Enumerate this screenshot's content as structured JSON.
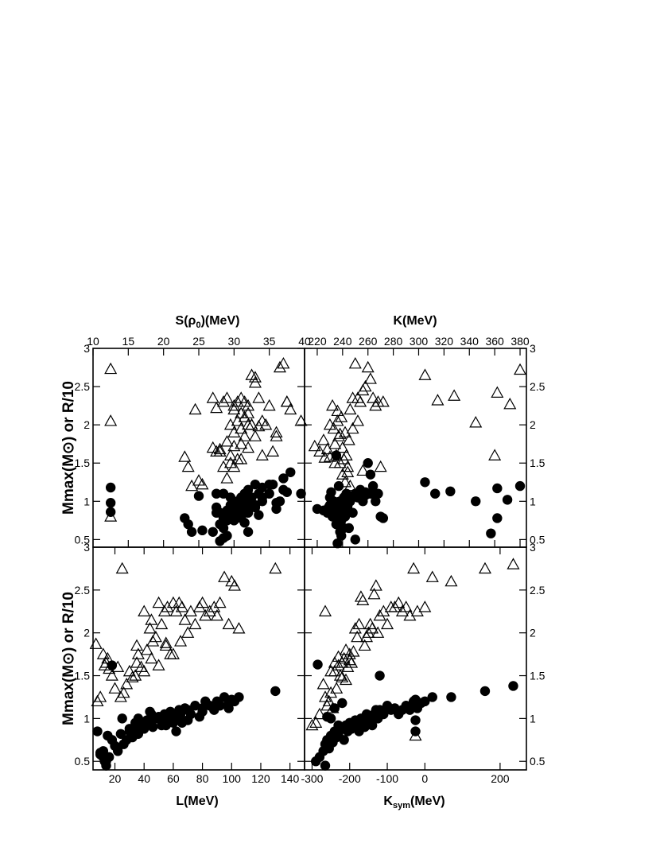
{
  "chart_data": [
    {
      "type": "scatter",
      "panel": "top-left",
      "xlabel": "S(ρ0)(MeV)",
      "xlabel_parts": {
        "main": "S(ρ",
        "sub": "0",
        "tail": ")(MeV)"
      },
      "xlabel_position": "top",
      "ylabel": "Mmax(M⊙) or R/10",
      "xlim": [
        10,
        40
      ],
      "ylim": [
        0.4,
        3.0
      ],
      "xticks": [
        10,
        15,
        20,
        25,
        30,
        35,
        40
      ],
      "yticks": [
        0.5,
        1,
        1.5,
        2,
        2.5,
        3
      ],
      "series": [
        {
          "marker": "circle-filled",
          "x": [
            12.5,
            12.5,
            12.5,
            23,
            23.5,
            24,
            25,
            25.5,
            27,
            27.5,
            27.5,
            27.5,
            28,
            28,
            28,
            28.5,
            28.5,
            28.5,
            29,
            29,
            29.5,
            29.5,
            29.5,
            30,
            30,
            30,
            30.5,
            30.5,
            31,
            31,
            31,
            31.5,
            31.5,
            31.5,
            32,
            32,
            32,
            32,
            32.5,
            32.5,
            33,
            33,
            33.5,
            33.5,
            34,
            34,
            34,
            35,
            35.5,
            36,
            36,
            37,
            37,
            37.5,
            38,
            39.5,
            28.5,
            28.5,
            29,
            30,
            31,
            33,
            35,
            36.5
          ],
          "y": [
            1.18,
            0.98,
            0.86,
            0.78,
            0.7,
            0.6,
            1.07,
            0.62,
            0.6,
            0.92,
            0.85,
            1.1,
            0.85,
            0.7,
            0.48,
            0.52,
            0.78,
            1.1,
            0.88,
            0.75,
            0.82,
            0.95,
            1.05,
            0.83,
            0.75,
            1.0,
            0.95,
            0.88,
            0.9,
            1.05,
            0.8,
            1.1,
            0.95,
            0.72,
            0.6,
            0.85,
            1.05,
            1.15,
            0.95,
            1.05,
            1.22,
            0.95,
            1.1,
            0.82,
            1.0,
            1.18,
            1.05,
            1.1,
            1.22,
            0.9,
            0.98,
            1.15,
            1.3,
            1.12,
            1.38,
            1.1,
            0.65,
            0.72,
            0.55,
            0.9,
            0.78,
            0.92,
            1.22,
            1.0
          ]
        },
        {
          "marker": "triangle-open",
          "x": [
            12.5,
            12.5,
            12.5,
            23,
            23.5,
            24,
            24.5,
            25,
            25.5,
            27,
            27,
            27.5,
            27.5,
            28,
            28,
            28.5,
            28.5,
            29,
            29,
            29.5,
            29.5,
            29.5,
            30,
            30,
            30,
            30,
            30.5,
            30.5,
            30.5,
            31,
            31,
            31,
            31,
            31.5,
            31.5,
            31.5,
            32,
            32,
            32,
            32,
            32.5,
            32.5,
            33,
            33,
            33.5,
            33.5,
            34,
            34,
            35,
            35.5,
            36,
            36.5,
            37,
            37.5,
            37.5,
            38,
            39.5,
            29,
            30,
            31,
            32.5,
            34.5,
            33,
            36
          ],
          "y": [
            2.73,
            2.05,
            0.8,
            1.58,
            1.45,
            1.2,
            2.2,
            1.27,
            1.22,
            1.7,
            2.35,
            2.22,
            1.65,
            1.68,
            1.65,
            1.45,
            2.3,
            1.78,
            2.35,
            1.6,
            2.0,
            1.5,
            1.9,
            2.25,
            1.72,
            1.45,
            2.3,
            1.55,
            2.05,
            2.35,
            2.15,
            1.75,
            1.55,
            2.1,
            2.3,
            1.85,
            2.0,
            2.15,
            2.25,
            1.7,
            2.65,
            2.0,
            2.55,
            1.85,
            2.35,
            1.98,
            2.05,
            1.6,
            2.25,
            1.65,
            1.9,
            2.75,
            2.8,
            2.3,
            2.3,
            2.2,
            2.05,
            1.3,
            2.2,
            1.95,
            2.0,
            2.0,
            2.62,
            1.85
          ]
        }
      ]
    },
    {
      "type": "scatter",
      "panel": "top-right",
      "xlabel": "K(MeV)",
      "xlabel_position": "top",
      "xlim": [
        210,
        385
      ],
      "ylim": [
        0.4,
        3.0
      ],
      "xticks": [
        220,
        240,
        260,
        280,
        300,
        320,
        340,
        360,
        380
      ],
      "yticks": [
        0.5,
        1,
        1.5,
        2,
        2.5,
        3
      ],
      "series": [
        {
          "marker": "circle-filled",
          "x": [
            220,
            225,
            228,
            230,
            232,
            233,
            234,
            235,
            236,
            237,
            238,
            239,
            240,
            241,
            242,
            243,
            244,
            245,
            246,
            248,
            250,
            252,
            254,
            256,
            258,
            260,
            262,
            264,
            266,
            268,
            270,
            272,
            230,
            232,
            234,
            236,
            238,
            240,
            242,
            244,
            235,
            237,
            239,
            241,
            233,
            229,
            231,
            246,
            250,
            258,
            262,
            305,
            313,
            325,
            345,
            357,
            362,
            362,
            370,
            380,
            236,
            238,
            240
          ],
          "y": [
            0.9,
            0.88,
            0.85,
            0.95,
            0.8,
            1.0,
            0.9,
            0.7,
            0.95,
            0.85,
            1.0,
            0.75,
            0.9,
            1.05,
            0.8,
            1.1,
            0.95,
            0.65,
            1.0,
            0.85,
            1.1,
            1.05,
            1.15,
            1.0,
            1.12,
            1.5,
            1.35,
            1.2,
            1.0,
            1.1,
            0.8,
            0.78,
            1.05,
            0.92,
            0.82,
            0.72,
            0.6,
            0.88,
            1.0,
            0.9,
            1.6,
            1.2,
            0.55,
            0.65,
            0.98,
            0.92,
            1.12,
            1.05,
            0.5,
            1.08,
            1.1,
            1.25,
            1.1,
            1.13,
            1.0,
            0.58,
            0.78,
            1.17,
            1.02,
            1.2,
            0.45,
            0.9,
            1.0
          ]
        },
        {
          "marker": "triangle-open",
          "x": [
            218,
            222,
            225,
            228,
            230,
            232,
            233,
            234,
            235,
            236,
            237,
            238,
            239,
            240,
            241,
            242,
            243,
            244,
            245,
            246,
            248,
            250,
            252,
            254,
            256,
            258,
            260,
            262,
            264,
            266,
            268,
            270,
            272,
            230,
            234,
            238,
            242,
            240,
            236,
            248,
            252,
            256,
            305,
            315,
            328,
            345,
            360,
            362,
            372,
            380,
            244,
            246,
            226
          ],
          "y": [
            1.72,
            1.65,
            1.8,
            1.68,
            2.0,
            2.25,
            1.95,
            1.75,
            1.6,
            2.05,
            1.85,
            1.5,
            2.1,
            1.7,
            1.55,
            1.9,
            1.6,
            1.45,
            1.8,
            2.2,
            2.35,
            2.8,
            2.05,
            2.3,
            2.45,
            2.5,
            2.75,
            2.6,
            2.35,
            2.25,
            2.3,
            1.45,
            2.3,
            1.58,
            1.5,
            1.88,
            1.25,
            1.35,
            2.18,
            1.95,
            2.35,
            1.4,
            2.65,
            2.32,
            2.38,
            2.03,
            1.6,
            2.42,
            2.27,
            2.72,
            1.38,
            1.2,
            1.57
          ]
        }
      ]
    },
    {
      "type": "scatter",
      "panel": "bottom-left",
      "xlabel": "L(MeV)",
      "ylabel": "Mmax(M⊙) or R/10",
      "xlim": [
        5,
        150
      ],
      "ylim": [
        0.4,
        3.0
      ],
      "xticks": [
        20,
        40,
        60,
        80,
        100,
        120,
        140
      ],
      "yticks": [
        0.5,
        1,
        1.5,
        2,
        2.5,
        3
      ],
      "series": [
        {
          "marker": "circle-filled",
          "x": [
            8,
            10,
            12,
            13,
            14,
            15,
            16,
            18,
            20,
            22,
            24,
            25,
            26,
            28,
            30,
            32,
            34,
            35,
            36,
            38,
            40,
            42,
            44,
            45,
            46,
            48,
            50,
            52,
            54,
            55,
            56,
            58,
            60,
            62,
            64,
            65,
            66,
            68,
            70,
            72,
            75,
            78,
            80,
            82,
            85,
            88,
            90,
            92,
            95,
            98,
            100,
            102,
            105,
            130,
            10,
            12,
            14,
            18,
            30,
            36,
            44,
            52,
            60,
            62,
            70,
            80,
            90,
            98
          ],
          "y": [
            0.85,
            0.6,
            0.55,
            0.5,
            0.45,
            0.8,
            0.55,
            0.75,
            0.68,
            0.62,
            0.82,
            1.0,
            0.7,
            0.75,
            0.85,
            0.78,
            0.95,
            0.9,
            0.82,
            0.92,
            0.88,
            0.98,
            0.95,
            1.05,
            0.9,
            1.0,
            1.02,
            0.98,
            1.05,
            0.92,
            1.0,
            1.08,
            0.95,
            1.02,
            1.1,
            1.05,
            0.95,
            1.12,
            1.1,
            1.05,
            1.15,
            1.02,
            1.12,
            1.2,
            1.15,
            1.1,
            1.2,
            1.15,
            1.25,
            1.18,
            1.22,
            1.2,
            1.25,
            1.32,
            0.58,
            0.62,
            0.5,
            1.62,
            0.88,
            1.0,
            1.08,
            0.92,
            1.05,
            0.85,
            0.98,
            1.08,
            1.18,
            1.12
          ]
        },
        {
          "marker": "triangle-open",
          "x": [
            7,
            8,
            10,
            12,
            13,
            14,
            15,
            16,
            18,
            20,
            22,
            24,
            25,
            26,
            28,
            30,
            32,
            34,
            35,
            36,
            38,
            40,
            42,
            44,
            45,
            46,
            48,
            50,
            52,
            54,
            55,
            56,
            58,
            60,
            62,
            64,
            65,
            66,
            68,
            70,
            72,
            75,
            78,
            80,
            82,
            85,
            88,
            90,
            92,
            95,
            98,
            100,
            102,
            105,
            130,
            35,
            40,
            45,
            50,
            55,
            60
          ],
          "y": [
            1.87,
            1.2,
            1.25,
            1.75,
            1.62,
            1.65,
            1.7,
            1.58,
            1.5,
            1.35,
            1.6,
            1.25,
            2.75,
            1.3,
            1.4,
            1.55,
            1.48,
            1.5,
            1.65,
            1.75,
            1.6,
            2.25,
            1.8,
            2.05,
            2.15,
            1.9,
            1.95,
            2.35,
            2.1,
            2.25,
            1.85,
            2.3,
            1.75,
            2.35,
            2.25,
            2.35,
            1.9,
            2.3,
            2.15,
            2.0,
            2.25,
            2.1,
            2.3,
            2.35,
            2.2,
            2.25,
            2.3,
            2.2,
            2.35,
            2.65,
            2.1,
            2.6,
            2.55,
            2.05,
            2.75,
            1.85,
            1.55,
            1.7,
            1.62,
            1.88,
            1.75
          ]
        }
      ]
    },
    {
      "type": "scatter",
      "panel": "bottom-right",
      "xlabel": "Ksym(MeV)",
      "xlabel_parts": {
        "main": "K",
        "sub": "sym",
        "tail": "(MeV)"
      },
      "xlim": [
        -320,
        270
      ],
      "ylim": [
        0.4,
        3.0
      ],
      "xticks": [
        -300,
        -200,
        -100,
        0,
        200
      ],
      "yticks": [
        0.5,
        1,
        1.5,
        2,
        2.5,
        3
      ],
      "series": [
        {
          "marker": "circle-filled",
          "x": [
            -290,
            -280,
            -270,
            -265,
            -260,
            -255,
            -250,
            -245,
            -240,
            -235,
            -230,
            -225,
            -220,
            -215,
            -210,
            -205,
            -200,
            -195,
            -190,
            -185,
            -180,
            -175,
            -170,
            -165,
            -160,
            -155,
            -150,
            -145,
            -140,
            -135,
            -130,
            -125,
            -120,
            -110,
            -100,
            -90,
            -80,
            -70,
            -60,
            -50,
            -40,
            -30,
            -25,
            -20,
            -10,
            0,
            20,
            70,
            160,
            235,
            -285,
            -260,
            -250,
            -240,
            -230,
            -220,
            -120,
            -25,
            -25,
            -265
          ],
          "y": [
            0.5,
            0.55,
            0.62,
            0.7,
            0.75,
            0.65,
            0.8,
            0.72,
            0.85,
            0.78,
            0.82,
            0.9,
            0.88,
            0.75,
            0.92,
            0.85,
            0.95,
            0.88,
            0.9,
            0.98,
            0.92,
            0.85,
            1.0,
            0.95,
            0.9,
            1.05,
            0.98,
            1.0,
            0.92,
            1.05,
            1.1,
            1.0,
            1.1,
            1.05,
            1.15,
            1.1,
            1.12,
            1.05,
            1.1,
            1.15,
            1.1,
            1.2,
            1.22,
            1.12,
            1.18,
            1.2,
            1.25,
            1.25,
            1.32,
            1.38,
            1.63,
            1.02,
            1.0,
            1.12,
            0.92,
            1.18,
            1.5,
            0.85,
            0.98,
            0.45
          ]
        },
        {
          "marker": "triangle-open",
          "x": [
            -300,
            -290,
            -280,
            -270,
            -265,
            -260,
            -255,
            -250,
            -245,
            -240,
            -235,
            -230,
            -225,
            -220,
            -215,
            -210,
            -205,
            -200,
            -195,
            -190,
            -185,
            -180,
            -175,
            -170,
            -165,
            -160,
            -155,
            -150,
            -145,
            -140,
            -135,
            -130,
            -125,
            -120,
            -110,
            -100,
            -90,
            -80,
            -70,
            -60,
            -50,
            -40,
            -30,
            -25,
            -20,
            0,
            20,
            70,
            160,
            235,
            -265,
            -250,
            -240,
            -230,
            -220,
            -210,
            -200
          ],
          "y": [
            0.92,
            0.95,
            1.05,
            1.4,
            1.25,
            1.15,
            1.2,
            1.3,
            1.12,
            1.55,
            1.35,
            1.62,
            1.5,
            1.65,
            1.7,
            1.45,
            1.6,
            1.75,
            1.65,
            1.78,
            2.05,
            1.95,
            2.1,
            2.42,
            2.38,
            1.85,
            1.95,
            2.0,
            2.1,
            2.05,
            2.45,
            2.55,
            2.0,
            2.2,
            2.25,
            2.1,
            2.3,
            2.3,
            2.35,
            2.25,
            2.3,
            2.2,
            2.75,
            0.8,
            2.25,
            2.3,
            2.65,
            2.6,
            2.75,
            2.8,
            2.25,
            1.55,
            1.65,
            1.72,
            1.48,
            1.8,
            1.68
          ]
        }
      ]
    }
  ]
}
